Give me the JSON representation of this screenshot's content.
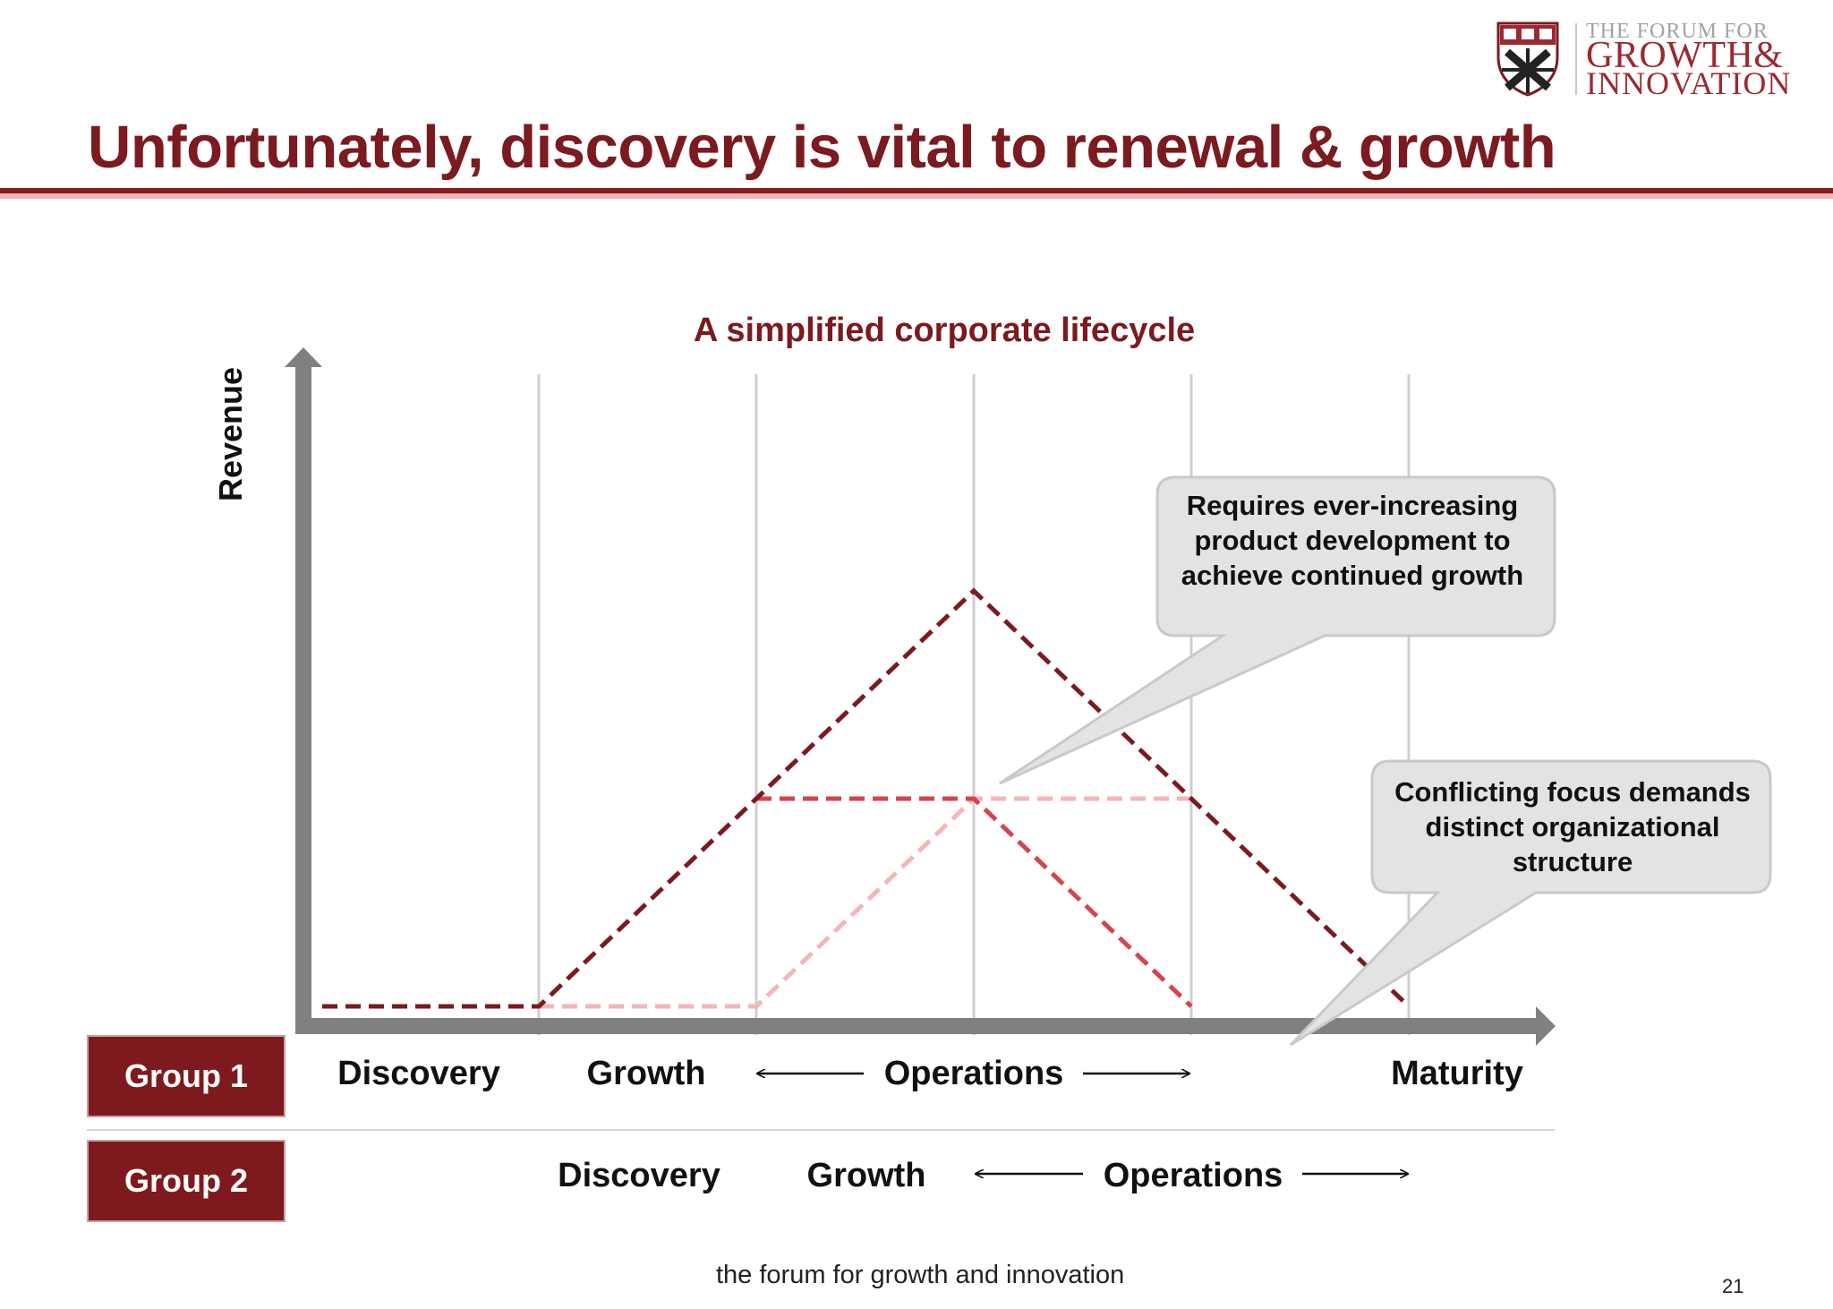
{
  "header": {
    "title": "Unfortunately, discovery is vital to renewal & growth",
    "logo": {
      "line1": "THE FORUM FOR",
      "line2": "GROWTH&",
      "line3": "INNOVATION",
      "icon": "harvard-shield-icon"
    }
  },
  "diagram": {
    "title": "A simplified corporate lifecycle",
    "ylabel": "Revenue",
    "colors": {
      "group1": "#7b1a1f",
      "group2_growth": "#d6444b",
      "group2_ops": "#f5b5b9",
      "axis": "#808080"
    },
    "callouts": [
      "Requires ever-increasing product development to achieve continued growth",
      "Conflicting focus demands distinct organizational structure"
    ],
    "groups": [
      {
        "label": "Group 1",
        "stages": [
          "Discovery",
          "Growth",
          "Operations",
          "Maturity"
        ]
      },
      {
        "label": "Group 2",
        "stages": [
          "Discovery",
          "Growth",
          "Operations"
        ]
      }
    ]
  },
  "footer": {
    "text": "the forum for growth and innovation",
    "page": "21"
  }
}
